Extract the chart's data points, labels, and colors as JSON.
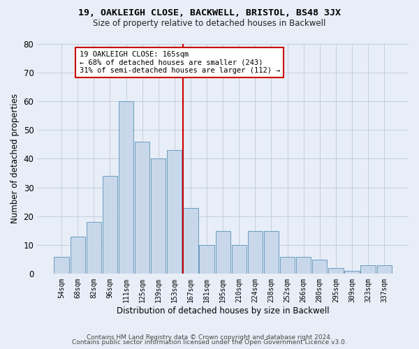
{
  "title1": "19, OAKLEIGH CLOSE, BACKWELL, BRISTOL, BS48 3JX",
  "title2": "Size of property relative to detached houses in Backwell",
  "xlabel": "Distribution of detached houses by size in Backwell",
  "ylabel": "Number of detached properties",
  "categories": [
    "54sqm",
    "68sqm",
    "82sqm",
    "96sqm",
    "111sqm",
    "125sqm",
    "139sqm",
    "153sqm",
    "167sqm",
    "181sqm",
    "195sqm",
    "210sqm",
    "224sqm",
    "238sqm",
    "252sqm",
    "266sqm",
    "280sqm",
    "295sqm",
    "309sqm",
    "323sqm",
    "337sqm"
  ],
  "values": [
    6,
    13,
    18,
    34,
    60,
    46,
    40,
    43,
    23,
    10,
    15,
    10,
    15,
    15,
    6,
    6,
    5,
    2,
    1,
    3,
    3
  ],
  "bar_color": "#c8d8ea",
  "bar_edge_color": "#6a9cbf",
  "vline_color": "#cc0000",
  "ylim": [
    0,
    80
  ],
  "yticks": [
    0,
    10,
    20,
    30,
    40,
    50,
    60,
    70,
    80
  ],
  "annotation_text": "19 OAKLEIGH CLOSE: 165sqm\n← 68% of detached houses are smaller (243)\n31% of semi-detached houses are larger (112) →",
  "annotation_box_color": "#cc0000",
  "footer1": "Contains HM Land Registry data © Crown copyright and database right 2024.",
  "footer2": "Contains public sector information licensed under the Open Government Licence v3.0.",
  "bg_color": "#e8eef7",
  "plot_bg_color": "#e8eef7",
  "grid_color": "#c0c8d8",
  "title1_fontsize": 9.5,
  "title2_fontsize": 8.5
}
